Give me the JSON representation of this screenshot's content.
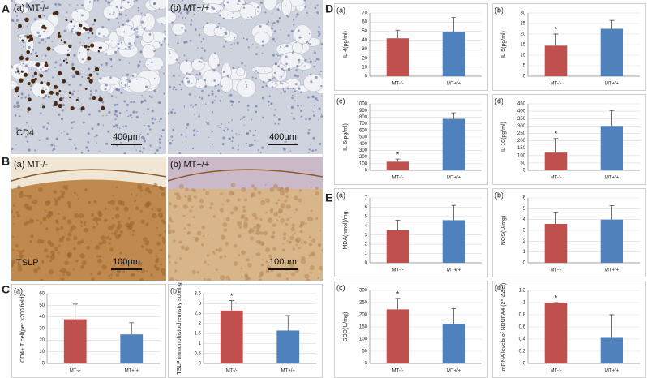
{
  "sections": [
    "A",
    "B",
    "C",
    "D",
    "E"
  ],
  "images": [
    {
      "label": "(a) MT-/-",
      "stain": "CD4",
      "scale": "400μm"
    },
    {
      "label": "(b) MT+/+",
      "scale": "400μm"
    },
    {
      "label": "(a) MT-/-",
      "stain": "TSLP",
      "scale": "100μm"
    },
    {
      "label": "(b) MT+/+",
      "scale": "100μm"
    }
  ],
  "chart_data": [
    {
      "type": "bar",
      "panel": "(a)",
      "ylabel": "CD4+ T cell(per ×200 field)",
      "categories": [
        "MT-/-",
        "MT+/+"
      ],
      "values": [
        38,
        25
      ],
      "errors": [
        13,
        10
      ],
      "colors": [
        "#c0504d",
        "#4f81bd"
      ],
      "significance": [
        null,
        null
      ],
      "ylim": [
        0,
        60
      ],
      "yticks": [
        0,
        10,
        20,
        30,
        40,
        50,
        60
      ]
    },
    {
      "type": "bar",
      "panel": "(b)",
      "ylabel": "TSLP immunohistochemistry scoring",
      "categories": [
        "MT-/-",
        "MT+/+"
      ],
      "values": [
        2.65,
        1.65
      ],
      "errors": [
        0.5,
        0.75
      ],
      "colors": [
        "#c0504d",
        "#4f81bd"
      ],
      "significance": [
        "*",
        null
      ],
      "ylim": [
        0,
        3.5
      ],
      "yticks": [
        0,
        0.5,
        1,
        1.5,
        2,
        2.5,
        3,
        3.5
      ]
    },
    {
      "type": "bar",
      "panel": "(a)",
      "ylabel": "IL-4(pg/ml)",
      "categories": [
        "MT-/-",
        "MT+/+"
      ],
      "values": [
        42,
        49
      ],
      "errors": [
        9,
        16
      ],
      "colors": [
        "#c0504d",
        "#4f81bd"
      ],
      "significance": [
        null,
        null
      ],
      "ylim": [
        0,
        70
      ],
      "yticks": [
        0,
        10,
        20,
        30,
        40,
        50,
        60,
        70
      ]
    },
    {
      "type": "bar",
      "panel": "(b)",
      "ylabel": "IL-5(pg/ml)",
      "categories": [
        "MT-/-",
        "MT+/+"
      ],
      "values": [
        14.5,
        22.5
      ],
      "errors": [
        5.5,
        4
      ],
      "colors": [
        "#c0504d",
        "#4f81bd"
      ],
      "significance": [
        "*",
        null
      ],
      "ylim": [
        0,
        30
      ],
      "yticks": [
        0,
        5,
        10,
        15,
        20,
        25,
        30
      ]
    },
    {
      "type": "bar",
      "panel": "(c)",
      "ylabel": "IL-6(pg/ml)",
      "categories": [
        "MT-/-",
        "MT+/+"
      ],
      "values": [
        130,
        775
      ],
      "errors": [
        40,
        90
      ],
      "colors": [
        "#c0504d",
        "#4f81bd"
      ],
      "significance": [
        "*",
        null
      ],
      "ylim": [
        0,
        1000
      ],
      "yticks": [
        0,
        100,
        200,
        300,
        400,
        500,
        600,
        700,
        800,
        900,
        1000
      ]
    },
    {
      "type": "bar",
      "panel": "(d)",
      "ylabel": "IL-10(pg/ml)",
      "categories": [
        "MT-/-",
        "MT+/+"
      ],
      "values": [
        120,
        300
      ],
      "errors": [
        95,
        105
      ],
      "colors": [
        "#c0504d",
        "#4f81bd"
      ],
      "significance": [
        "*",
        null
      ],
      "ylim": [
        0,
        450
      ],
      "yticks": [
        0,
        50,
        100,
        150,
        200,
        250,
        300,
        350,
        400,
        450
      ]
    },
    {
      "type": "bar",
      "panel": "(a)",
      "ylabel": "MDA(nmol)/mg",
      "categories": [
        "MT-/-",
        "MT+/+"
      ],
      "values": [
        3.5,
        4.6
      ],
      "errors": [
        1.1,
        1.6
      ],
      "colors": [
        "#c0504d",
        "#4f81bd"
      ],
      "significance": [
        null,
        null
      ],
      "ylim": [
        0,
        7
      ],
      "yticks": [
        0,
        1,
        2,
        3,
        4,
        5,
        6,
        7
      ]
    },
    {
      "type": "bar",
      "panel": "(b)",
      "ylabel": "NOS(U/mg)",
      "categories": [
        "MT-/-",
        "MT+/+"
      ],
      "values": [
        3.6,
        4.0
      ],
      "errors": [
        1.1,
        1.3
      ],
      "colors": [
        "#c0504d",
        "#4f81bd"
      ],
      "significance": [
        null,
        null
      ],
      "ylim": [
        0,
        6
      ],
      "yticks": [
        0,
        1,
        2,
        3,
        4,
        5,
        6
      ]
    },
    {
      "type": "bar",
      "panel": "(c)",
      "ylabel": "SOD(U/mg)",
      "categories": [
        "MT-/-",
        "MT+/+"
      ],
      "values": [
        222,
        163
      ],
      "errors": [
        45,
        62
      ],
      "colors": [
        "#c0504d",
        "#4f81bd"
      ],
      "significance": [
        "*",
        null
      ],
      "ylim": [
        0,
        300
      ],
      "yticks": [
        0,
        50,
        100,
        150,
        200,
        250,
        300
      ]
    },
    {
      "type": "bar",
      "panel": "(d)",
      "ylabel": "mRNA levels of NDUFA4 (2^-ΔΔct)",
      "categories": [
        "MT-/-",
        "MT+/+"
      ],
      "values": [
        1.0,
        0.42
      ],
      "errors": [
        0,
        0.38
      ],
      "colors": [
        "#c0504d",
        "#4f81bd"
      ],
      "significance": [
        "*",
        null
      ],
      "ylim": [
        0,
        1.2
      ],
      "yticks": [
        0,
        0.2,
        0.4,
        0.6,
        0.8,
        1,
        1.2
      ]
    }
  ]
}
